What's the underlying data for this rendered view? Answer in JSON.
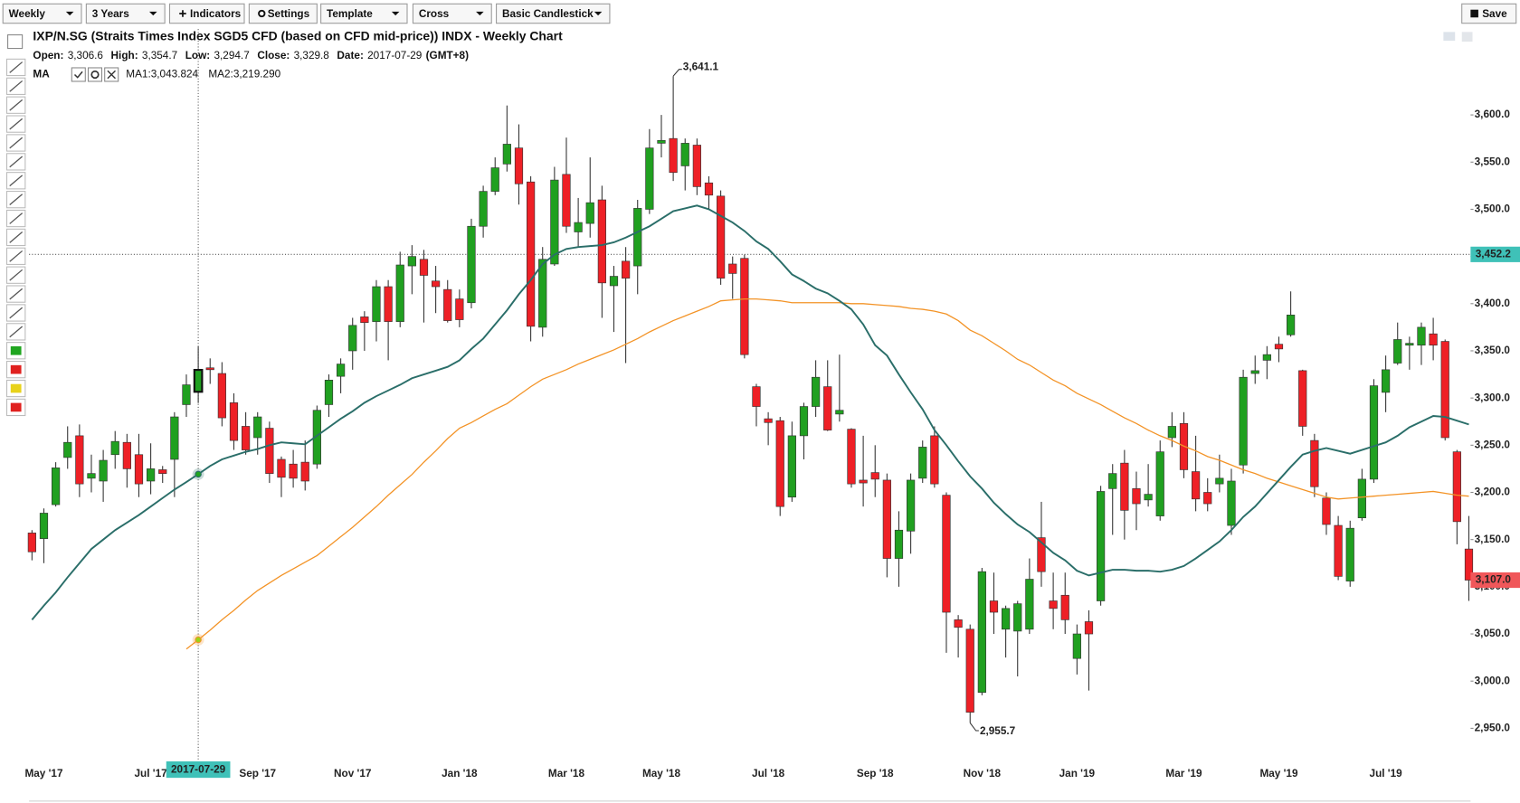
{
  "toolbar": {
    "period": "Weekly",
    "range": "3 Years",
    "indicators": "Indicators",
    "settings": "Settings",
    "template": "Template",
    "cursor": "Cross",
    "style": "Basic Candlestick",
    "save": "Save"
  },
  "header": {
    "title": "IXP/N.SG (Straits Times Index SGD5 CFD (based on CFD mid-price)) INDX - Weekly Chart",
    "ohlc": [
      {
        "label": "Open:",
        "value": "3,306.6"
      },
      {
        "label": "High:",
        "value": "3,354.7"
      },
      {
        "label": "Low:",
        "value": "3,294.7"
      },
      {
        "label": "Close:",
        "value": "3,329.8"
      },
      {
        "label": "Date:",
        "value": "2017-07-29"
      }
    ],
    "timezone": "(GMT+8)",
    "indicator": "MA"
  },
  "chart_data": {
    "type": "candlestick",
    "categories": [
      null,
      "May '17",
      null,
      null,
      null,
      null,
      null,
      null,
      null,
      null,
      "Jul '17",
      null,
      null,
      null,
      null,
      null,
      null,
      null,
      null,
      "Sep '17",
      null,
      null,
      null,
      null,
      null,
      null,
      null,
      "Nov '17",
      null,
      null,
      null,
      null,
      null,
      null,
      null,
      null,
      "Jan '18",
      null,
      null,
      null,
      null,
      null,
      null,
      null,
      null,
      "Mar '18",
      null,
      null,
      null,
      null,
      null,
      null,
      null,
      "May '18",
      null,
      null,
      null,
      null,
      null,
      null,
      null,
      null,
      "Jul '18",
      null,
      null,
      null,
      null,
      null,
      null,
      null,
      null,
      "Sep '18",
      null,
      null,
      null,
      null,
      null,
      null,
      null,
      null,
      "Nov '18",
      null,
      null,
      null,
      null,
      null,
      null,
      null,
      "Jan '19",
      null,
      null,
      null,
      null,
      null,
      null,
      null,
      null,
      "Mar '19",
      null,
      null,
      null,
      null,
      null,
      null,
      null,
      "May '19",
      null,
      null,
      null,
      null,
      null,
      null,
      null,
      null,
      "Jul '19",
      null,
      null,
      null,
      null,
      null,
      null,
      null
    ],
    "open": [
      3157,
      3151,
      3187,
      3237,
      3260,
      3215,
      3212,
      3240,
      3253,
      3240,
      3212,
      3224,
      3235,
      3293,
      3306.6,
      3332,
      3326,
      3295,
      3270,
      3258,
      3268,
      3235,
      3230,
      3232,
      3230,
      3293,
      3323,
      3350,
      3386,
      3381,
      3418,
      3381,
      3440,
      3447,
      3424,
      3415,
      3405,
      3401,
      3482,
      3519,
      3548,
      3565,
      3529,
      3375,
      3442,
      3537,
      3476,
      3485,
      3510,
      3419,
      3445,
      3440,
      3500,
      3570,
      3575,
      3546,
      3568,
      3528,
      3514,
      3442,
      3448,
      3312,
      3278,
      3276,
      3195,
      3260,
      3291,
      3312,
      3283,
      3267,
      3213,
      3221,
      3213,
      3130,
      3159,
      3215,
      3260,
      3197,
      3065,
      3055,
      2988,
      3085,
      3055,
      3053,
      3055,
      3152,
      3085,
      3091,
      3024,
      3063,
      3085,
      3204,
      3231,
      3204,
      3192,
      3175,
      3258,
      3273,
      3222,
      3200,
      3209,
      3165,
      3229,
      3326,
      3340,
      3357,
      3367,
      3329,
      3255,
      3194,
      3165,
      3106,
      3173,
      3214,
      3306,
      3337,
      3356,
      3356,
      3368,
      3360,
      3243,
      3140
    ],
    "high": [
      3160,
      3183,
      3232,
      3270,
      3272,
      3240,
      3245,
      3265,
      3262,
      3262,
      3252,
      3228,
      3285,
      3325,
      3354.7,
      3342,
      3338,
      3305,
      3285,
      3285,
      3275,
      3238,
      3245,
      3255,
      3292,
      3325,
      3342,
      3385,
      3392,
      3425,
      3425,
      3455,
      3462,
      3457,
      3440,
      3425,
      3415,
      3490,
      3525,
      3555,
      3610,
      3590,
      3535,
      3460,
      3545,
      3576,
      3512,
      3555,
      3525,
      3440,
      3460,
      3510,
      3585,
      3600,
      3641.1,
      3575,
      3575,
      3535,
      3520,
      3450,
      3452,
      3315,
      3285,
      3280,
      3275,
      3295,
      3340,
      3340,
      3346,
      3268,
      3260,
      3250,
      3220,
      3180,
      3220,
      3255,
      3270,
      3200,
      3070,
      3060,
      3120,
      3115,
      3080,
      3085,
      3130,
      3190,
      3115,
      3115,
      3060,
      3075,
      3207,
      3230,
      3245,
      3222,
      3230,
      3255,
      3285,
      3285,
      3260,
      3215,
      3240,
      3225,
      3330,
      3345,
      3355,
      3365,
      3413,
      3330,
      3262,
      3200,
      3175,
      3170,
      3225,
      3320,
      3345,
      3380,
      3365,
      3380,
      3385,
      3362,
      3245,
      3175
    ],
    "low": [
      3128,
      3125,
      3185,
      3225,
      3195,
      3200,
      3190,
      3225,
      3205,
      3195,
      3198,
      3210,
      3195,
      3280,
      3294.7,
      3315,
      3270,
      3245,
      3240,
      3240,
      3210,
      3195,
      3205,
      3202,
      3225,
      3280,
      3305,
      3330,
      3350,
      3360,
      3340,
      3375,
      3410,
      3380,
      3390,
      3380,
      3375,
      3395,
      3470,
      3515,
      3540,
      3505,
      3360,
      3365,
      3440,
      3475,
      3460,
      3470,
      3385,
      3370,
      3337,
      3410,
      3495,
      3555,
      3530,
      3520,
      3515,
      3500,
      3420,
      3405,
      3342,
      3270,
      3250,
      3175,
      3190,
      3235,
      3280,
      3265,
      3275,
      3205,
      3185,
      3195,
      3110,
      3100,
      3135,
      3210,
      3205,
      3030,
      3025,
      2955.7,
      2985,
      3050,
      3025,
      3005,
      3050,
      3100,
      3055,
      3050,
      3007,
      2990,
      3080,
      3155,
      3150,
      3160,
      3185,
      3170,
      3248,
      3215,
      3180,
      3180,
      3200,
      3155,
      3220,
      3315,
      3320,
      3338,
      3365,
      3260,
      3195,
      3155,
      3107,
      3100,
      3170,
      3210,
      3285,
      3335,
      3330,
      3335,
      3340,
      3255,
      3145,
      3085
    ],
    "close": [
      3137,
      3178,
      3226,
      3253,
      3209,
      3220,
      3234,
      3254,
      3225,
      3209,
      3225,
      3220,
      3280,
      3314,
      3329.8,
      3330,
      3279,
      3255,
      3245,
      3280,
      3220,
      3216,
      3215,
      3212,
      3287,
      3319,
      3336,
      3377,
      3380,
      3418,
      3381,
      3441,
      3450,
      3430,
      3418,
      3382,
      3383,
      3482,
      3519,
      3544,
      3569,
      3527,
      3376,
      3447,
      3531,
      3482,
      3486,
      3507,
      3422,
      3429,
      3427,
      3501,
      3565,
      3573,
      3539,
      3570,
      3524,
      3515,
      3427,
      3432,
      3346,
      3291,
      3274,
      3185,
      3260,
      3291,
      3322,
      3266,
      3287,
      3209,
      3210,
      3214,
      3130,
      3160,
      3213,
      3248,
      3209,
      3073,
      3057,
      2967,
      3116,
      3073,
      3077,
      3082,
      3108,
      3116,
      3077,
      3065,
      3050,
      3050,
      3201,
      3220,
      3181,
      3188,
      3198,
      3243,
      3270,
      3224,
      3193,
      3188,
      3215,
      3212,
      3322,
      3329,
      3346,
      3352,
      3388,
      3270,
      3206,
      3166,
      3111,
      3162,
      3214,
      3313,
      3330,
      3362,
      3358,
      3375,
      3356,
      3258,
      3169,
      3107
    ],
    "up_color": "#20a020",
    "down_color": "#ee2026",
    "series": [
      {
        "label": "MA1:3,043.824",
        "color": "#f39326",
        "values": [
          null,
          null,
          null,
          null,
          null,
          null,
          null,
          null,
          null,
          null,
          null,
          null,
          null,
          3034,
          3043.824,
          3054,
          3065,
          3075,
          3086,
          3096,
          3104,
          3112,
          3119,
          3126,
          3133,
          3143,
          3153,
          3163,
          3174,
          3185,
          3197,
          3208,
          3219,
          3232,
          3244,
          3257,
          3268,
          3274,
          3281,
          3288,
          3294,
          3303,
          3312,
          3320,
          3325,
          3330,
          3336,
          3341,
          3346,
          3351,
          3357,
          3363,
          3370,
          3376,
          3382,
          3387,
          3392,
          3397,
          3403,
          3404,
          3405,
          3405,
          3404,
          3403,
          3401,
          3401,
          3401,
          3401,
          3401,
          3400,
          3400,
          3399,
          3398,
          3397,
          3395,
          3394,
          3392,
          3389,
          3382,
          3372,
          3366,
          3358,
          3350,
          3341,
          3335,
          3327,
          3319,
          3313,
          3305,
          3299,
          3293,
          3286,
          3279,
          3273,
          3266,
          3260,
          3255,
          3249,
          3244,
          3238,
          3234,
          3229,
          3224,
          3220,
          3215,
          3211,
          3207,
          3203,
          3199,
          3195,
          3193,
          3194,
          3195,
          3196,
          3197,
          3198,
          3199,
          3200,
          3201,
          3199,
          3197,
          3196
        ]
      },
      {
        "label": "MA2:3,219.290",
        "color": "#2a6e69",
        "values": [
          3065,
          3080,
          3094,
          3110,
          3125,
          3140,
          3150,
          3160,
          3168,
          3176,
          3185,
          3194,
          3203,
          3211,
          3219.29,
          3228,
          3235,
          3239,
          3243,
          3246,
          3250,
          3253,
          3252,
          3251,
          3260,
          3269,
          3278,
          3286,
          3295,
          3302,
          3308,
          3314,
          3321,
          3325,
          3329,
          3333,
          3340,
          3352,
          3363,
          3378,
          3393,
          3410,
          3425,
          3442,
          3452,
          3458,
          3460,
          3461,
          3462,
          3465,
          3470,
          3476,
          3482,
          3490,
          3498,
          3501,
          3504,
          3500,
          3493,
          3486,
          3477,
          3466,
          3458,
          3445,
          3431,
          3424,
          3416,
          3411,
          3403,
          3394,
          3378,
          3356,
          3345,
          3325,
          3306,
          3288,
          3266,
          3250,
          3233,
          3217,
          3204,
          3189,
          3177,
          3166,
          3158,
          3147,
          3136,
          3128,
          3117,
          3112,
          3115,
          3118,
          3118,
          3117,
          3117,
          3116,
          3118,
          3122,
          3130,
          3139,
          3148,
          3160,
          3174,
          3185,
          3199,
          3213,
          3227,
          3240,
          3244,
          3247,
          3244,
          3241,
          3245,
          3249,
          3253,
          3260,
          3269,
          3275,
          3281,
          3280,
          3276,
          3272
        ]
      }
    ],
    "ylim": [
      2916,
      3691
    ],
    "yticks": [
      {
        "value": 2950,
        "label": "2,950.0"
      },
      {
        "value": 3000,
        "label": "3,000.0"
      },
      {
        "value": 3050,
        "label": "3,050.0"
      },
      {
        "value": 3100,
        "label": "3,100.0"
      },
      {
        "value": 3150,
        "label": "3,150.0"
      },
      {
        "value": 3200,
        "label": "3,200.0"
      },
      {
        "value": 3250,
        "label": "3,250.0"
      },
      {
        "value": 3300,
        "label": "3,300.0"
      },
      {
        "value": 3350,
        "label": "3,350.0"
      },
      {
        "value": 3400,
        "label": "3,400.0"
      },
      {
        "value": 3450,
        "label": "3,450.0"
      },
      {
        "value": 3500,
        "label": "3,500.0"
      },
      {
        "value": 3550,
        "label": "3,550.0"
      },
      {
        "value": 3600,
        "label": "3,600.0"
      }
    ],
    "grid": false,
    "high_annotation": {
      "value": 3641.1,
      "label": "3,641.1"
    },
    "low_annotation": {
      "value": 2955.7,
      "label": "2,955.7"
    },
    "last_price": {
      "value": 3107.0,
      "label": "3,107.0"
    },
    "crosshair": {
      "date": "2017-07-29",
      "price": {
        "value": 3452.2,
        "label": "3,452.2"
      }
    }
  }
}
